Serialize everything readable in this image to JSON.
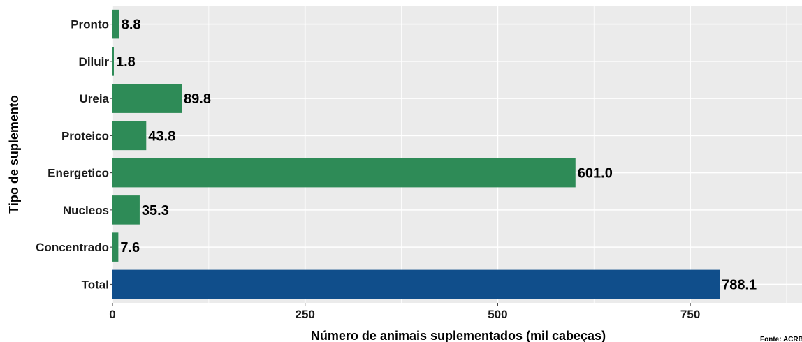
{
  "chart_data": {
    "type": "bar",
    "orientation": "horizontal",
    "categories": [
      "Pronto",
      "Diluir",
      "Ureia",
      "Proteico",
      "Energetico",
      "Nucleos",
      "Concentrado",
      "Total"
    ],
    "values": [
      8.8,
      1.8,
      89.8,
      43.8,
      601.0,
      35.3,
      7.6,
      788.1
    ],
    "value_labels": [
      "8.8",
      "1.8",
      "89.8",
      "43.8",
      "601.0",
      "35.3",
      "7.6",
      "788.1"
    ],
    "bar_colors": [
      "#2e8b57",
      "#2e8b57",
      "#2e8b57",
      "#2e8b57",
      "#2e8b57",
      "#2e8b57",
      "#2e8b57",
      "#104e8b"
    ],
    "xlabel": "Número de animais suplementados (mil cabeças)",
    "ylabel": "Tipo de suplemento",
    "xlim": [
      0,
      895
    ],
    "xticks": [
      0,
      250,
      500,
      750
    ],
    "grid": true,
    "panel_background": "#ebebeb",
    "grid_color": "#ffffff",
    "source_note": "Fonte: ACRBA"
  }
}
